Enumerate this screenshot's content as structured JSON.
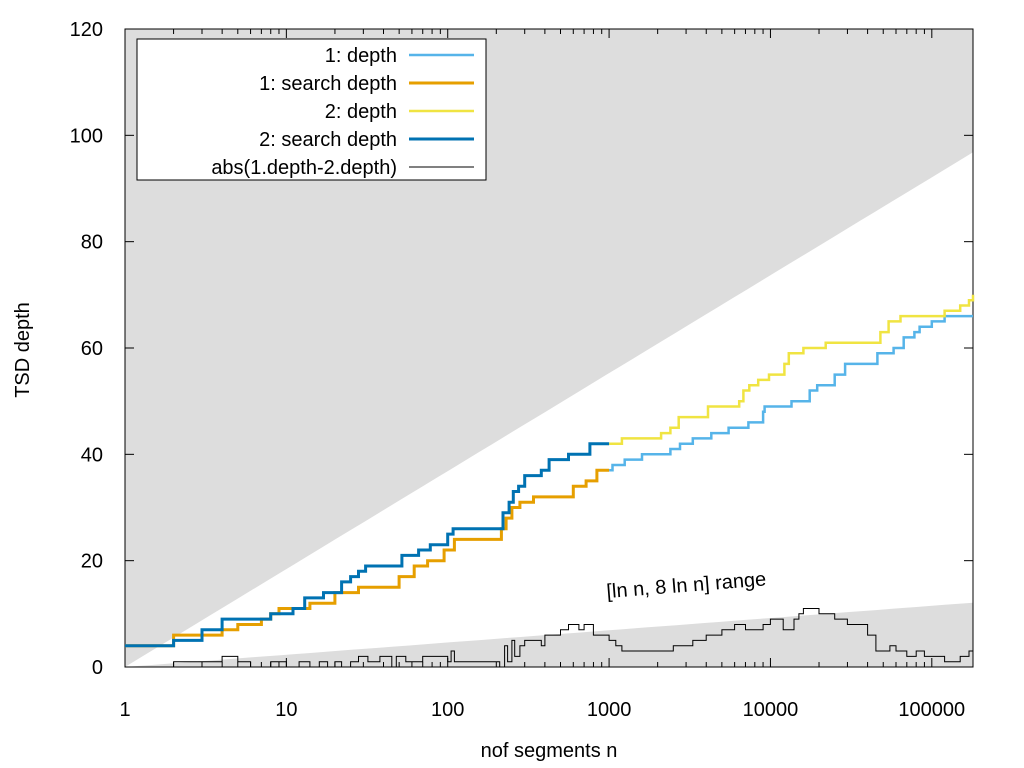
{
  "chart_data": {
    "type": "line",
    "xscale": "log",
    "xlabel": "nof segments n",
    "ylabel": "TSD depth",
    "xlim": [
      1,
      180000
    ],
    "ylim": [
      0,
      120
    ],
    "xticks": [
      {
        "value": 1,
        "label": "1"
      },
      {
        "value": 10,
        "label": "10"
      },
      {
        "value": 100,
        "label": "100"
      },
      {
        "value": 1000,
        "label": "1000"
      },
      {
        "value": 10000,
        "label": "10000"
      },
      {
        "value": 100000,
        "label": "100000"
      }
    ],
    "yticks": [
      {
        "value": 0,
        "label": "0"
      },
      {
        "value": 20,
        "label": "20"
      },
      {
        "value": 40,
        "label": "40"
      },
      {
        "value": 60,
        "label": "60"
      },
      {
        "value": 80,
        "label": "80"
      },
      {
        "value": 100,
        "label": "100"
      },
      {
        "value": 120,
        "label": "120"
      }
    ],
    "range_band": {
      "label": "[ln n, 8 ln n] range",
      "lower_factor": 1,
      "upper_factor": 8,
      "color": "#dddddd"
    },
    "legend_position": "top-left",
    "series": [
      {
        "name": "1: depth",
        "color": "#56b4e9",
        "width": 2.5,
        "points": [
          [
            1000,
            37
          ],
          [
            1050,
            38
          ],
          [
            1250,
            39
          ],
          [
            1600,
            40
          ],
          [
            2400,
            41
          ],
          [
            2750,
            42
          ],
          [
            3300,
            43
          ],
          [
            4300,
            44
          ],
          [
            5500,
            45
          ],
          [
            7300,
            46
          ],
          [
            9000,
            48
          ],
          [
            9200,
            49
          ],
          [
            13500,
            50
          ],
          [
            17500,
            52
          ],
          [
            19500,
            53
          ],
          [
            25000,
            55
          ],
          [
            29000,
            57
          ],
          [
            44000,
            57
          ],
          [
            46000,
            59
          ],
          [
            58000,
            60
          ],
          [
            67000,
            62
          ],
          [
            78000,
            63
          ],
          [
            84000,
            64
          ],
          [
            100000,
            65
          ],
          [
            120000,
            66
          ],
          [
            180000,
            66
          ]
        ]
      },
      {
        "name": "1: search depth",
        "color": "#e69f00",
        "width": 3,
        "points": [
          [
            1,
            4
          ],
          [
            2,
            6
          ],
          [
            3,
            6
          ],
          [
            4,
            7
          ],
          [
            5,
            8
          ],
          [
            7,
            9
          ],
          [
            8,
            10
          ],
          [
            9,
            11
          ],
          [
            12,
            11
          ],
          [
            14,
            12
          ],
          [
            20,
            14
          ],
          [
            28,
            15
          ],
          [
            40,
            15
          ],
          [
            50,
            17
          ],
          [
            62,
            19
          ],
          [
            75,
            20
          ],
          [
            95,
            22
          ],
          [
            110,
            24
          ],
          [
            200,
            24
          ],
          [
            215,
            26
          ],
          [
            230,
            28
          ],
          [
            250,
            30
          ],
          [
            280,
            31
          ],
          [
            340,
            32
          ],
          [
            500,
            32
          ],
          [
            580,
            32
          ],
          [
            600,
            34
          ],
          [
            720,
            35
          ],
          [
            840,
            37
          ],
          [
            1000,
            37
          ]
        ]
      },
      {
        "name": "2: depth",
        "color": "#f0e442",
        "width": 2.5,
        "points": [
          [
            1000,
            42
          ],
          [
            1200,
            43
          ],
          [
            1500,
            43
          ],
          [
            2100,
            44
          ],
          [
            2400,
            45
          ],
          [
            2700,
            47
          ],
          [
            3400,
            47
          ],
          [
            4100,
            49
          ],
          [
            5000,
            49
          ],
          [
            6400,
            50
          ],
          [
            6800,
            52
          ],
          [
            7400,
            53
          ],
          [
            8400,
            54
          ],
          [
            9800,
            55
          ],
          [
            11000,
            55
          ],
          [
            12200,
            57
          ],
          [
            13000,
            59
          ],
          [
            16000,
            60
          ],
          [
            22000,
            61
          ],
          [
            38000,
            61
          ],
          [
            48000,
            63
          ],
          [
            54000,
            65
          ],
          [
            58000,
            65
          ],
          [
            64000,
            66
          ],
          [
            110000,
            66
          ],
          [
            120000,
            67
          ],
          [
            150000,
            68
          ],
          [
            170000,
            69
          ],
          [
            180000,
            70
          ]
        ]
      },
      {
        "name": "2: search depth",
        "color": "#0072b2",
        "width": 3,
        "points": [
          [
            1,
            4
          ],
          [
            2,
            5
          ],
          [
            3,
            7
          ],
          [
            4,
            9
          ],
          [
            7,
            9
          ],
          [
            8,
            10
          ],
          [
            10,
            10
          ],
          [
            11,
            11
          ],
          [
            13,
            13
          ],
          [
            17,
            14
          ],
          [
            20,
            14
          ],
          [
            22,
            16
          ],
          [
            25,
            17
          ],
          [
            28,
            18
          ],
          [
            31,
            19
          ],
          [
            45,
            19
          ],
          [
            52,
            21
          ],
          [
            66,
            22
          ],
          [
            78,
            23
          ],
          [
            100,
            25
          ],
          [
            108,
            26
          ],
          [
            205,
            26
          ],
          [
            220,
            29
          ],
          [
            240,
            31
          ],
          [
            255,
            33
          ],
          [
            275,
            34
          ],
          [
            300,
            36
          ],
          [
            380,
            37
          ],
          [
            425,
            39
          ],
          [
            520,
            39
          ],
          [
            560,
            40
          ],
          [
            730,
            40
          ],
          [
            760,
            42
          ],
          [
            1000,
            42
          ]
        ]
      },
      {
        "name": "abs(1.depth-2.depth)",
        "color": "#000000",
        "width": 1,
        "points": [
          [
            1,
            0
          ],
          [
            2,
            1
          ],
          [
            3,
            1
          ],
          [
            4,
            2
          ],
          [
            5,
            1
          ],
          [
            6,
            0
          ],
          [
            8,
            1
          ],
          [
            9,
            1
          ],
          [
            10,
            0
          ],
          [
            12,
            1
          ],
          [
            14,
            0
          ],
          [
            16,
            1
          ],
          [
            18,
            0
          ],
          [
            20,
            1
          ],
          [
            22,
            0
          ],
          [
            25,
            1
          ],
          [
            28,
            2
          ],
          [
            32,
            1
          ],
          [
            38,
            2
          ],
          [
            45,
            0
          ],
          [
            48,
            2
          ],
          [
            55,
            1
          ],
          [
            70,
            2
          ],
          [
            85,
            2
          ],
          [
            100,
            1
          ],
          [
            105,
            3
          ],
          [
            110,
            1
          ],
          [
            200,
            1
          ],
          [
            210,
            0
          ],
          [
            225,
            4
          ],
          [
            235,
            1
          ],
          [
            250,
            5
          ],
          [
            260,
            2
          ],
          [
            280,
            4
          ],
          [
            300,
            5
          ],
          [
            380,
            4
          ],
          [
            400,
            6
          ],
          [
            500,
            7
          ],
          [
            560,
            8
          ],
          [
            650,
            7
          ],
          [
            700,
            8
          ],
          [
            800,
            6
          ],
          [
            1000,
            5
          ],
          [
            1100,
            4
          ],
          [
            1200,
            3
          ],
          [
            2000,
            3
          ],
          [
            2500,
            4
          ],
          [
            3300,
            5
          ],
          [
            4000,
            6
          ],
          [
            5000,
            7
          ],
          [
            6000,
            8
          ],
          [
            7000,
            7
          ],
          [
            8000,
            7
          ],
          [
            9000,
            8
          ],
          [
            10000,
            9
          ],
          [
            12000,
            7
          ],
          [
            14000,
            9
          ],
          [
            15000,
            10
          ],
          [
            16000,
            11
          ],
          [
            20000,
            10
          ],
          [
            25000,
            9
          ],
          [
            30000,
            8
          ],
          [
            40000,
            6
          ],
          [
            45000,
            3
          ],
          [
            55000,
            4
          ],
          [
            60000,
            3
          ],
          [
            70000,
            2
          ],
          [
            80000,
            3
          ],
          [
            90000,
            2
          ],
          [
            120000,
            1
          ],
          [
            150000,
            2
          ],
          [
            170000,
            3
          ],
          [
            180000,
            3
          ]
        ]
      }
    ]
  }
}
